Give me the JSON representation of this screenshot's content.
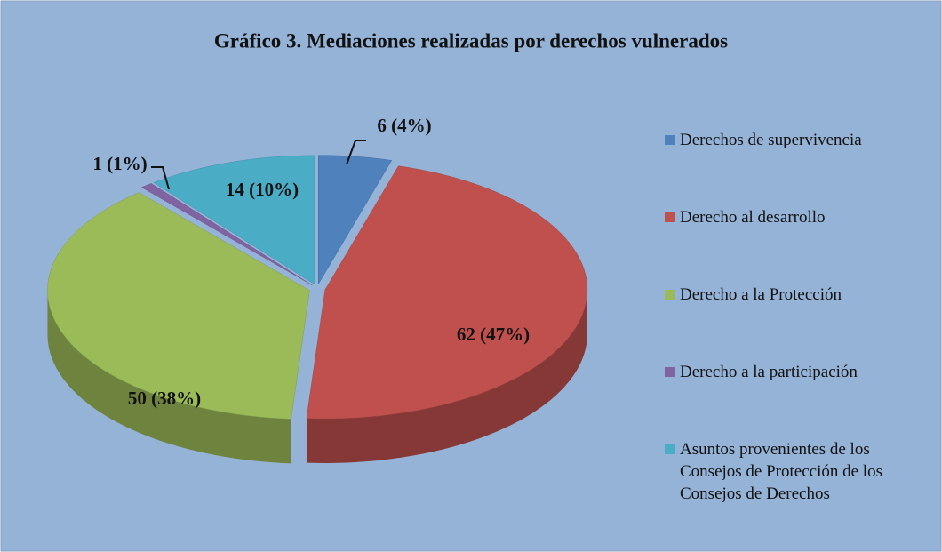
{
  "chart_data": {
    "type": "pie",
    "title": "Gráfico 3. Mediaciones realizadas por  derechos vulnerados",
    "categories": [
      "Derechos de supervivencia",
      "Derecho al desarrollo",
      "Derecho a la Protección",
      "Derecho a la participación",
      "Asuntos provenientes de los Consejos de Protección de los Consejos de Derechos"
    ],
    "values": [
      6,
      62,
      50,
      1,
      14
    ],
    "value_labels": [
      "6 (4%)",
      "62 (47%)",
      "50 (38%)",
      "1 (1%)",
      "14 (10%)"
    ],
    "colors": [
      "#4f81bd",
      "#c0504d",
      "#9bbb59",
      "#8064a2",
      "#4bacc6"
    ],
    "legend": "right"
  }
}
